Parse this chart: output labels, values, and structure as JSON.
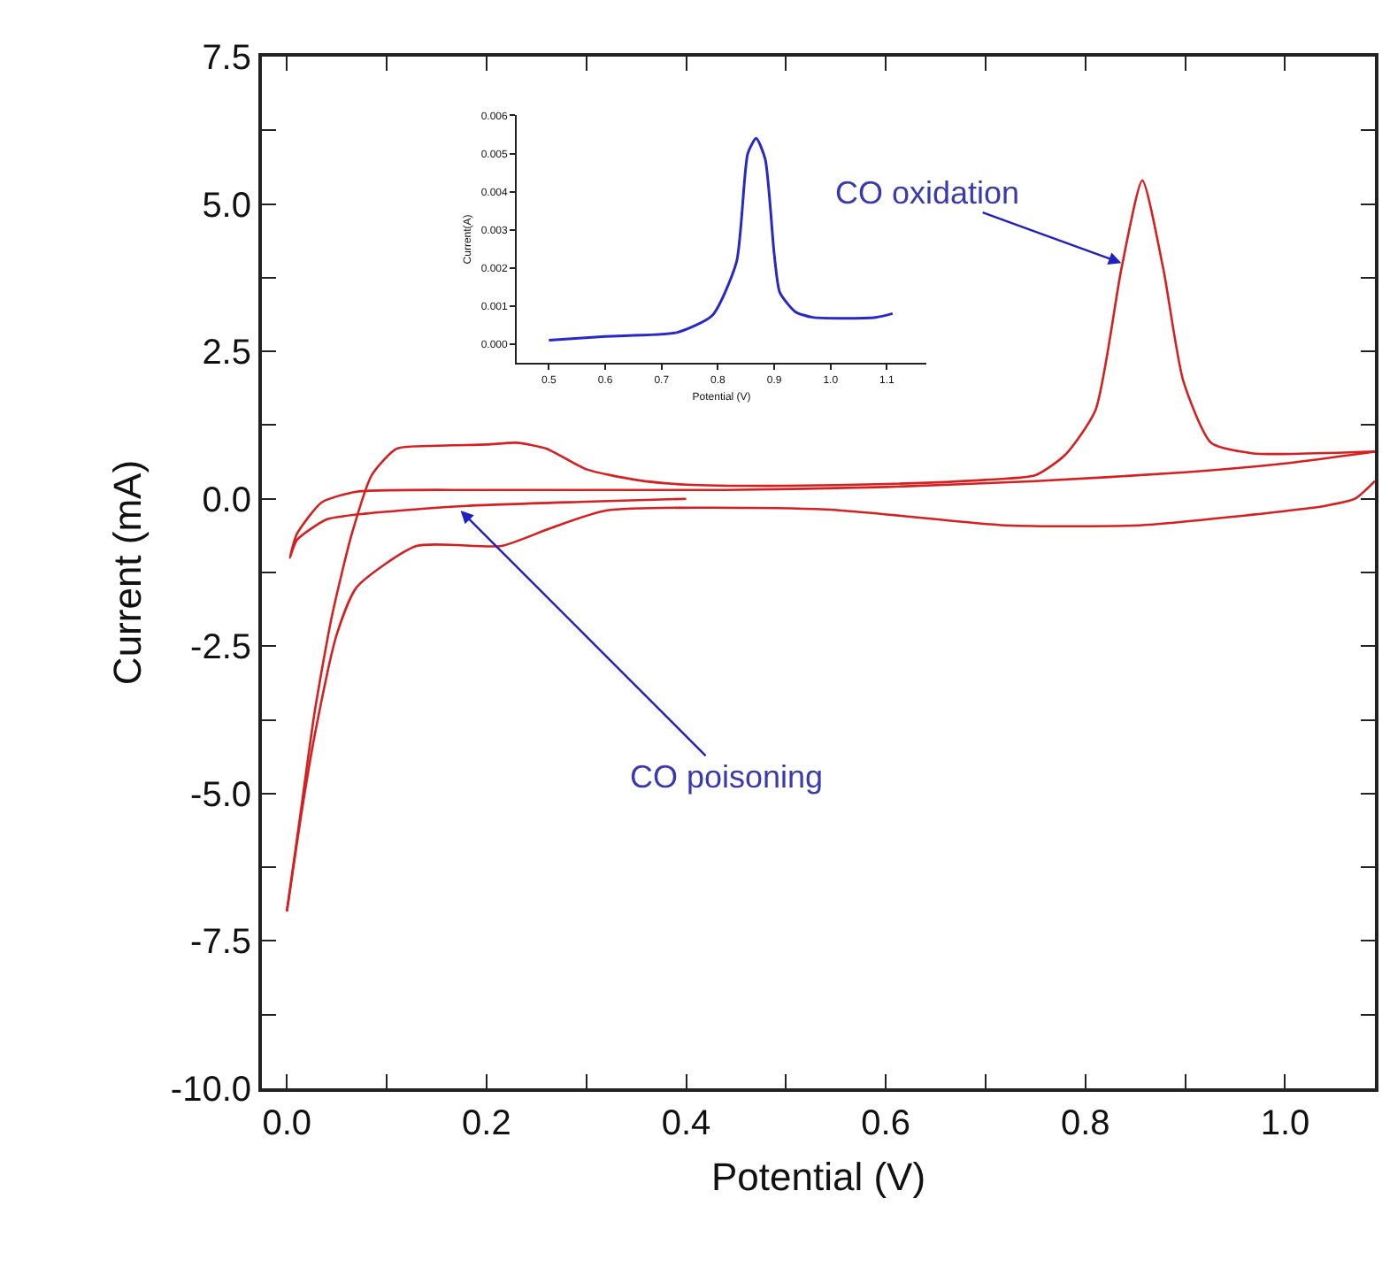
{
  "chart_data": [
    {
      "type": "line",
      "xlabel": "Potential (V)",
      "ylabel": "Current (mA)",
      "xlim": [
        -0.025,
        1.09
      ],
      "ylim": [
        -10,
        7.5
      ],
      "xticks": [
        {
          "value": 0,
          "label": "0.0"
        },
        {
          "value": 0.1,
          "label": null
        },
        {
          "value": 0.2,
          "label": "0.2"
        },
        {
          "value": 0.3,
          "label": null
        },
        {
          "value": 0.4,
          "label": "0.4"
        },
        {
          "value": 0.5,
          "label": null
        },
        {
          "value": 0.6,
          "label": "0.6"
        },
        {
          "value": 0.7,
          "label": null
        },
        {
          "value": 0.8,
          "label": "0.8"
        },
        {
          "value": 0.9,
          "label": null
        },
        {
          "value": 1.0,
          "label": "1.0"
        }
      ],
      "yticks": [
        {
          "value": -10,
          "label": "-10.0"
        },
        {
          "value": -8.75,
          "label": null
        },
        {
          "value": -7.5,
          "label": "-7.5"
        },
        {
          "value": -6.25,
          "label": null
        },
        {
          "value": -5,
          "label": "-5.0"
        },
        {
          "value": -3.75,
          "label": null
        },
        {
          "value": -2.5,
          "label": "-2.5"
        },
        {
          "value": -1.25,
          "label": null
        },
        {
          "value": 0,
          "label": "0.0"
        },
        {
          "value": 1.25,
          "label": null
        },
        {
          "value": 2.5,
          "label": "2.5"
        },
        {
          "value": 3.75,
          "label": null
        },
        {
          "value": 5,
          "label": "5.0"
        },
        {
          "value": 6.25,
          "label": null
        },
        {
          "value": 7.5,
          "label": "7.5"
        }
      ],
      "marker": "none",
      "line_style": "solid",
      "series": [
        {
          "color": "#d42020",
          "x": [
            0.0,
            0.014,
            0.028,
            0.045,
            0.065,
            0.085,
            0.11,
            0.15,
            0.2,
            0.23,
            0.26,
            0.3,
            0.35,
            0.4,
            0.5,
            0.6,
            0.7,
            0.75,
            0.78,
            0.81,
            0.836,
            0.857,
            0.878,
            0.898,
            0.926,
            0.968,
            1.0,
            1.09
          ],
          "values": [
            -7.0,
            -5.3,
            -3.6,
            -2.0,
            -0.6,
            0.4,
            0.85,
            0.9,
            0.92,
            0.95,
            0.85,
            0.5,
            0.32,
            0.24,
            0.22,
            0.25,
            0.32,
            0.4,
            0.75,
            1.5,
            3.9,
            5.4,
            3.9,
            2.0,
            0.95,
            0.77,
            0.76,
            0.8
          ]
        },
        {
          "color": "#d42020",
          "x": [
            0.4,
            0.3,
            0.18,
            0.08,
            0.04,
            0.01,
            0.003,
            0.01,
            0.035,
            0.07,
            0.2,
            0.44,
            0.6,
            0.75,
            0.9,
            1.0,
            1.09
          ],
          "values": [
            0.0,
            -0.05,
            -0.12,
            -0.25,
            -0.35,
            -0.7,
            -1.0,
            -0.6,
            -0.06,
            0.12,
            0.15,
            0.15,
            0.2,
            0.3,
            0.45,
            0.6,
            0.8
          ]
        },
        {
          "color": "#d42020",
          "x": [
            1.09,
            1.07,
            1.04,
            0.95,
            0.854,
            0.72,
            0.54,
            0.32,
            0.264,
            0.215,
            0.13,
            0.07,
            0.05,
            0.028,
            0.014,
            0.0
          ],
          "values": [
            0.3,
            0.0,
            -0.12,
            -0.3,
            -0.45,
            -0.45,
            -0.18,
            -0.2,
            -0.5,
            -0.8,
            -0.8,
            -1.5,
            -2.3,
            -4.0,
            -5.4,
            -7.0
          ]
        }
      ],
      "annotations": [
        {
          "text": "CO oxidation",
          "x": 0.836,
          "y": 4.0
        },
        {
          "text": "CO poisoning",
          "x": 0.174,
          "y": -0.2
        }
      ]
    },
    {
      "type": "line",
      "xlabel": "Potential (V)",
      "ylabel": "Current(A)",
      "xlim": [
        0.443,
        1.17
      ],
      "ylim": [
        -0.0005,
        0.006
      ],
      "xticks": [
        {
          "value": 0.5,
          "label": "0.5"
        },
        {
          "value": 0.6,
          "label": "0.6"
        },
        {
          "value": 0.7,
          "label": "0.7"
        },
        {
          "value": 0.8,
          "label": "0.8"
        },
        {
          "value": 0.9,
          "label": "0.9"
        },
        {
          "value": 1.0,
          "label": "1.0"
        },
        {
          "value": 1.1,
          "label": "1.1"
        }
      ],
      "yticks": [
        {
          "value": 0,
          "label": "0.000"
        },
        {
          "value": 0.001,
          "label": "0.001"
        },
        {
          "value": 0.002,
          "label": "0.002"
        },
        {
          "value": 0.003,
          "label": "0.003"
        },
        {
          "value": 0.004,
          "label": "0.004"
        },
        {
          "value": 0.005,
          "label": "0.005"
        },
        {
          "value": 0.006,
          "label": "0.006"
        }
      ],
      "marker": "none",
      "line_style": "solid",
      "series": [
        {
          "color": "#2828c8",
          "x": [
            0.5,
            0.6,
            0.727,
            0.79,
            0.833,
            0.853,
            0.868,
            0.884,
            0.9,
            0.91,
            0.937,
            0.968,
            1.08,
            1.11
          ],
          "values": [
            0.0001,
            0.0002,
            0.0003,
            0.00075,
            0.00215,
            0.005,
            0.0054,
            0.00485,
            0.00235,
            0.00135,
            0.00085,
            0.0007,
            0.0007,
            0.0008
          ]
        }
      ]
    }
  ]
}
